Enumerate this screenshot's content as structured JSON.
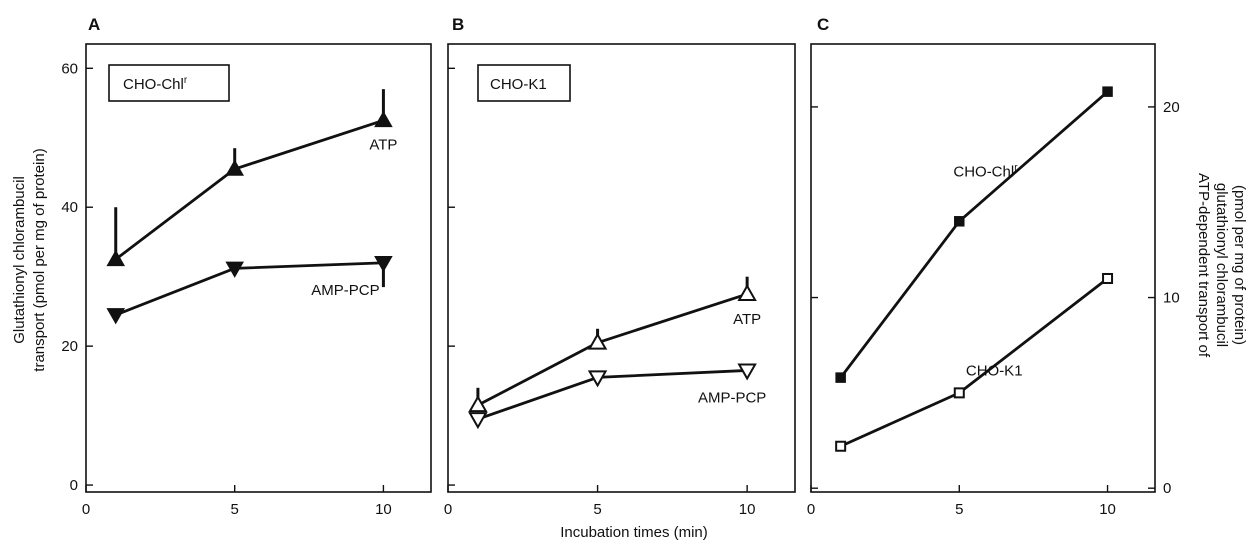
{
  "figure": {
    "shared_xlabel": "Incubation times (min)",
    "left_ylabel_line1": "Glutathionyl chlorambucil",
    "left_ylabel_line2": "transport (pmol per mg of protein)",
    "right_ylabel_line1": "ATP-dependent transport of",
    "right_ylabel_line2": "glutathionyl chlorambucil",
    "right_ylabel_line3": "(pmol per mg of protein)"
  },
  "chart_data": [
    {
      "panel": "A",
      "type": "line",
      "box_label": "CHO-Chl",
      "box_label_sup": "r",
      "x": [
        1,
        5,
        10
      ],
      "xticks": [
        0,
        5,
        10
      ],
      "xlim": [
        0,
        11.6
      ],
      "ylim": [
        -1,
        63.5
      ],
      "yticks": [
        0,
        20,
        40,
        60
      ],
      "y_axis": "left",
      "series": [
        {
          "name": "ATP",
          "marker": "triangle-up-filled",
          "values": [
            32.5,
            45.5,
            52.5
          ],
          "err_up": [
            7.5,
            3,
            4.5
          ],
          "err_down": [
            0,
            0,
            0
          ]
        },
        {
          "name": "AMP-PCP",
          "marker": "triangle-down-filled",
          "values": [
            24.5,
            31.2,
            32
          ],
          "err_up": [
            0,
            0,
            0
          ],
          "err_down": [
            0,
            0,
            3.5
          ]
        }
      ]
    },
    {
      "panel": "B",
      "type": "line",
      "box_label": "CHO-K1",
      "box_label_sup": "",
      "x": [
        1,
        5,
        10
      ],
      "xticks": [
        0,
        5,
        10
      ],
      "xlim": [
        0,
        11.6
      ],
      "ylim": [
        -1,
        63.5
      ],
      "yticks": [
        0,
        20,
        40,
        60
      ],
      "y_axis": "none",
      "series": [
        {
          "name": "ATP",
          "marker": "triangle-up-open",
          "values": [
            11.5,
            20.5,
            27.5
          ],
          "err_up": [
            2.5,
            2,
            2.5
          ],
          "err_down": [
            0,
            0,
            0
          ]
        },
        {
          "name": "AMP-PCP",
          "marker": "triangle-down-open",
          "values": [
            9.5,
            15.5,
            16.5
          ],
          "err_up": [
            0,
            0,
            0
          ],
          "err_down": [
            0,
            0,
            0
          ]
        }
      ]
    },
    {
      "panel": "C",
      "type": "line",
      "box_label": "",
      "box_label_sup": "",
      "x": [
        1,
        5,
        10
      ],
      "xticks": [
        0,
        5,
        10
      ],
      "xlim": [
        0,
        11.6
      ],
      "ylim": [
        -0.2,
        23.3
      ],
      "yticks": [
        0,
        10,
        20
      ],
      "y_axis": "right",
      "series": [
        {
          "name": "CHO-Chl",
          "name_sup": "r",
          "marker": "square-filled",
          "values": [
            5.8,
            14,
            20.8
          ],
          "err_up": [
            0,
            0,
            0
          ],
          "err_down": [
            0,
            0,
            0
          ]
        },
        {
          "name": "CHO-K1",
          "name_sup": "",
          "marker": "square-open",
          "values": [
            2.2,
            5,
            11
          ],
          "err_up": [
            0,
            0,
            0
          ],
          "err_down": [
            0,
            0,
            0
          ]
        }
      ]
    }
  ]
}
